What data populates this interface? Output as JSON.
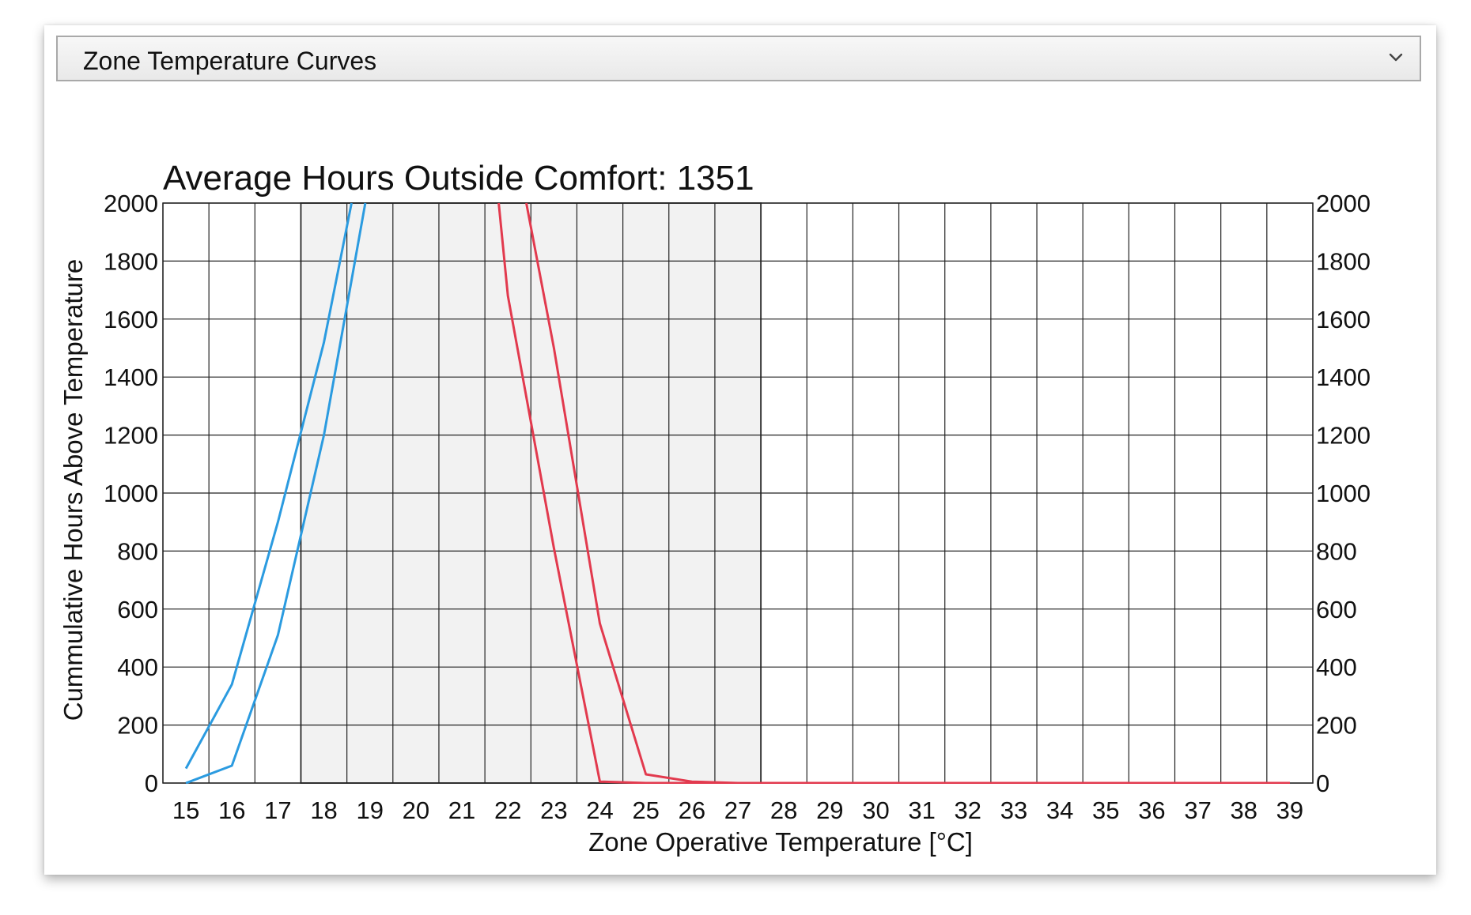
{
  "dropdown": {
    "selected": "Zone Temperature Curves",
    "icon": "chevron-down-icon"
  },
  "chart_data": {
    "type": "line",
    "title": "Average Hours Outside Comfort: 1351",
    "xlabel": "Zone Operative Temperature [°C]",
    "ylabel": "Cummulative Hours Above Temperature",
    "xlim": [
      14.5,
      39.5
    ],
    "ylim": [
      0,
      2000
    ],
    "x_ticks": [
      15,
      16,
      17,
      18,
      19,
      20,
      21,
      22,
      23,
      24,
      25,
      26,
      27,
      28,
      29,
      30,
      31,
      32,
      33,
      34,
      35,
      36,
      37,
      38,
      39
    ],
    "y_ticks": [
      0,
      200,
      400,
      600,
      800,
      1000,
      1200,
      1400,
      1600,
      1800,
      2000
    ],
    "grid": true,
    "comfort_band": [
      17.5,
      27.5
    ],
    "colors": {
      "cold": "#2b9be0",
      "hot": "#e23a4e",
      "band": "#f2f2f2"
    },
    "series": [
      {
        "color": "#2b9be0",
        "points": [
          [
            15,
            50
          ],
          [
            16,
            340
          ],
          [
            17,
            900
          ],
          [
            18,
            1520
          ],
          [
            18.6,
            2000
          ]
        ]
      },
      {
        "color": "#2b9be0",
        "points": [
          [
            15,
            0
          ],
          [
            16,
            60
          ],
          [
            17,
            510
          ],
          [
            18,
            1200
          ],
          [
            18.9,
            2000
          ]
        ]
      },
      {
        "color": "#e23a4e",
        "points": [
          [
            21.8,
            2000
          ],
          [
            22,
            1680
          ],
          [
            23,
            810
          ],
          [
            24,
            5
          ],
          [
            25,
            0
          ],
          [
            39,
            0
          ]
        ]
      },
      {
        "color": "#e23a4e",
        "points": [
          [
            22.4,
            2000
          ],
          [
            23,
            1500
          ],
          [
            24,
            550
          ],
          [
            25,
            30
          ],
          [
            26,
            5
          ],
          [
            27,
            0
          ],
          [
            39,
            0
          ]
        ]
      }
    ]
  }
}
